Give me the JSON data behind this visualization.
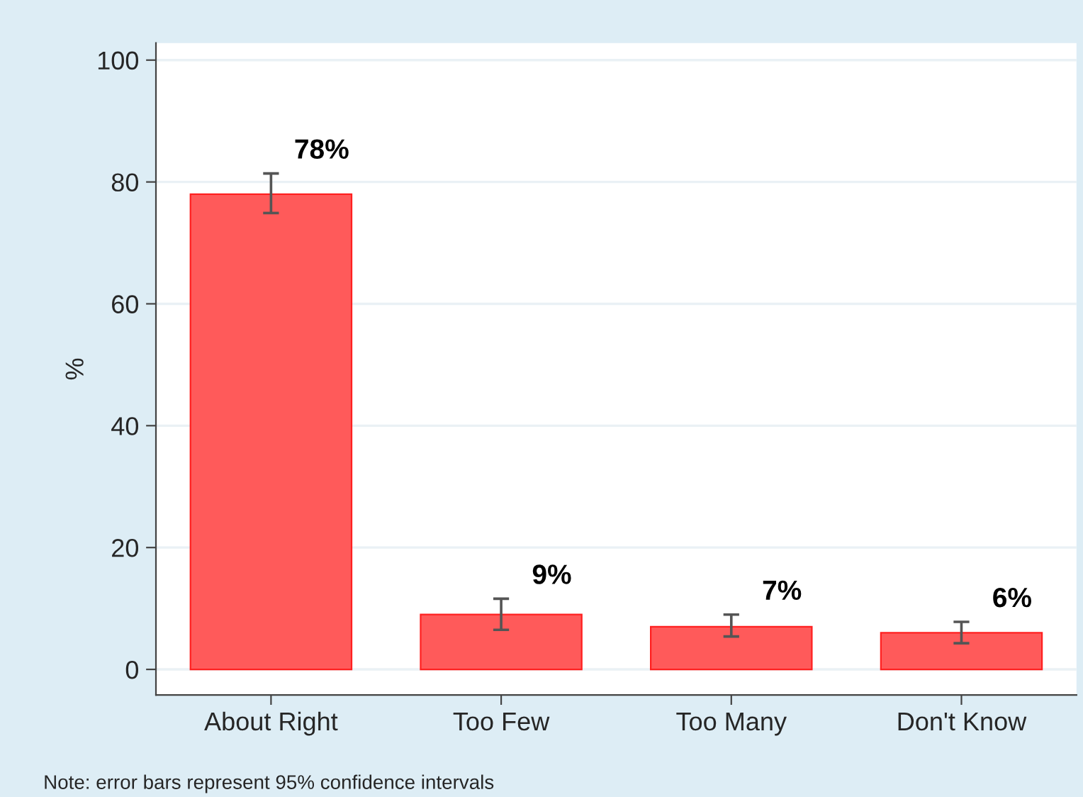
{
  "chart_data": {
    "type": "bar",
    "ylabel": "%",
    "categories": [
      "About Right",
      "Too Few",
      "Too Many",
      "Don't Know"
    ],
    "values": [
      78,
      9,
      7,
      6
    ],
    "errors": [
      [
        74.9,
        81.4
      ],
      [
        6.5,
        11.6
      ],
      [
        5.4,
        9.0
      ],
      [
        4.3,
        7.8
      ]
    ],
    "value_labels": [
      "78%",
      "9%",
      "7%",
      "6%"
    ],
    "color": "#ff5a5a",
    "ylim": [
      -4.2,
      102.8
    ],
    "yticks": [
      0,
      20,
      40,
      60,
      80,
      100
    ],
    "grid": "y",
    "legend": false,
    "annotations": [
      "Note: error bars represent 95% confidence intervals"
    ]
  }
}
